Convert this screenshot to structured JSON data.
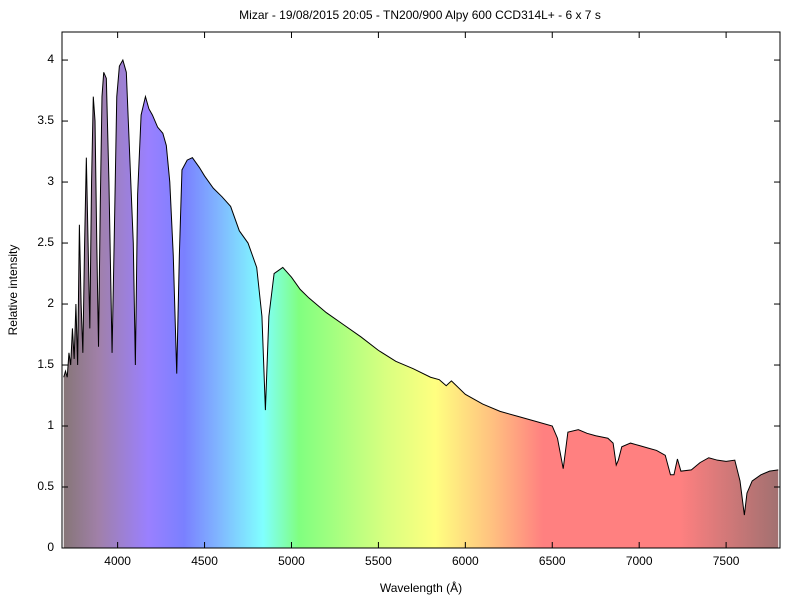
{
  "chart_data": {
    "type": "line",
    "title": "Mizar - 19/08/2015 20:05 - TN200/900 Alpy 600 CCD314L+ - 6 x 7 s",
    "x_label": "Wavelength (Å)",
    "y_label": "Relative intensity",
    "color": "#000000",
    "x": [
      3690,
      3700,
      3710,
      3720,
      3730,
      3740,
      3750,
      3760,
      3770,
      3780,
      3790,
      3800,
      3810,
      3820,
      3830,
      3840,
      3850,
      3860,
      3870,
      3880,
      3890,
      3900,
      3910,
      3920,
      3935,
      3950,
      3968,
      3980,
      3995,
      4010,
      4030,
      4050,
      4070,
      4090,
      4102,
      4115,
      4135,
      4160,
      4180,
      4200,
      4230,
      4260,
      4280,
      4300,
      4320,
      4340,
      4355,
      4370,
      4400,
      4430,
      4470,
      4500,
      4550,
      4600,
      4650,
      4700,
      4750,
      4800,
      4830,
      4850,
      4870,
      4900,
      4950,
      5000,
      5050,
      5100,
      5200,
      5300,
      5400,
      5500,
      5600,
      5700,
      5800,
      5850,
      5890,
      5920,
      6000,
      6100,
      6200,
      6300,
      6400,
      6500,
      6530,
      6563,
      6590,
      6650,
      6700,
      6750,
      6820,
      6850,
      6868,
      6880,
      6900,
      6950,
      7000,
      7050,
      7100,
      7150,
      7180,
      7200,
      7220,
      7240,
      7300,
      7350,
      7400,
      7450,
      7500,
      7550,
      7580,
      7605,
      7620,
      7650,
      7700,
      7750,
      7800
    ],
    "values": [
      1.4,
      1.45,
      1.4,
      1.6,
      1.5,
      1.8,
      1.55,
      2.0,
      1.5,
      2.65,
      2.0,
      1.6,
      2.5,
      3.2,
      2.5,
      1.8,
      3.0,
      3.7,
      3.5,
      2.5,
      1.65,
      2.8,
      3.7,
      3.9,
      3.85,
      3.0,
      1.6,
      2.5,
      3.7,
      3.95,
      4.0,
      3.9,
      3.2,
      2.5,
      1.5,
      2.9,
      3.55,
      3.7,
      3.6,
      3.55,
      3.45,
      3.4,
      3.3,
      3.0,
      2.4,
      1.43,
      2.4,
      3.1,
      3.18,
      3.2,
      3.12,
      3.05,
      2.95,
      2.88,
      2.8,
      2.6,
      2.5,
      2.3,
      1.9,
      1.13,
      1.9,
      2.25,
      2.3,
      2.22,
      2.12,
      2.05,
      1.93,
      1.83,
      1.73,
      1.62,
      1.53,
      1.47,
      1.4,
      1.38,
      1.33,
      1.37,
      1.26,
      1.18,
      1.12,
      1.08,
      1.04,
      1.0,
      0.9,
      0.65,
      0.95,
      0.97,
      0.94,
      0.92,
      0.9,
      0.86,
      0.68,
      0.72,
      0.83,
      0.86,
      0.84,
      0.82,
      0.8,
      0.76,
      0.6,
      0.6,
      0.73,
      0.63,
      0.64,
      0.7,
      0.74,
      0.72,
      0.71,
      0.72,
      0.55,
      0.27,
      0.45,
      0.55,
      0.6,
      0.63,
      0.64
    ],
    "xlim": [
      3680,
      7810
    ],
    "ylim": [
      0,
      4.23
    ],
    "xticks": [
      4000,
      4500,
      5000,
      5500,
      6000,
      6500,
      7000,
      7500
    ],
    "yticks": [
      0,
      0.5,
      1,
      1.5,
      2,
      2.5,
      3,
      3.5,
      4
    ]
  }
}
